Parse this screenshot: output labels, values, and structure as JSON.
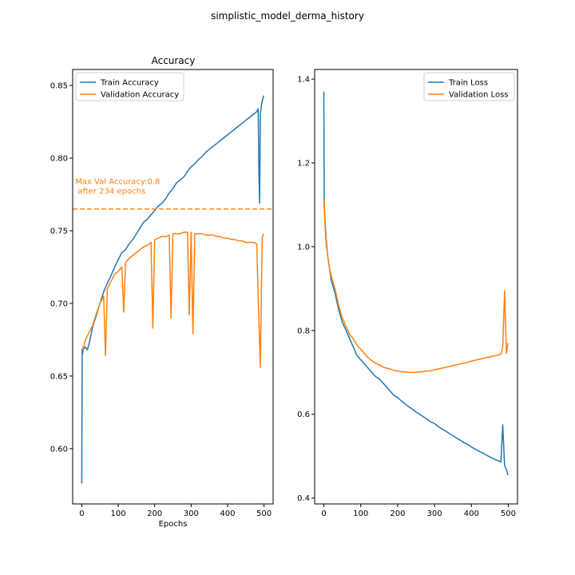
{
  "figure": {
    "suptitle": "simplistic_model_derma_history"
  },
  "colors": {
    "train": "#1f77b4",
    "validation": "#ff7f0e",
    "axes": "#000000",
    "background": "#ffffff"
  },
  "chart_data": [
    {
      "type": "line",
      "title": "Accuracy",
      "xlabel": "Epochs",
      "ylabel": "",
      "xlim": [
        -25,
        525
      ],
      "ylim": [
        0.562,
        0.861
      ],
      "xticks": [
        0,
        100,
        200,
        300,
        400,
        500
      ],
      "xtick_labels": [
        "0",
        "100",
        "200",
        "300",
        "400",
        "500"
      ],
      "yticks": [
        0.6,
        0.65,
        0.7,
        0.75,
        0.8,
        0.85
      ],
      "ytick_labels": [
        "0.60",
        "0.65",
        "0.70",
        "0.75",
        "0.80",
        "0.85"
      ],
      "grid": false,
      "legend": "upper-left",
      "series": [
        {
          "name": "Train Accuracy",
          "color_key": "train",
          "x": [
            0,
            1,
            2,
            4,
            6,
            10,
            15,
            20,
            25,
            30,
            40,
            50,
            60,
            70,
            80,
            90,
            100,
            110,
            120,
            130,
            140,
            150,
            160,
            170,
            180,
            190,
            200,
            210,
            220,
            230,
            240,
            250,
            260,
            270,
            280,
            290,
            300,
            310,
            320,
            330,
            340,
            350,
            360,
            370,
            380,
            390,
            400,
            410,
            420,
            430,
            440,
            450,
            460,
            470,
            480,
            484,
            486,
            488,
            490,
            494,
            499
          ],
          "y": [
            0.576,
            0.668,
            0.665,
            0.67,
            0.669,
            0.67,
            0.668,
            0.672,
            0.678,
            0.684,
            0.692,
            0.7,
            0.708,
            0.714,
            0.719,
            0.725,
            0.73,
            0.735,
            0.737,
            0.741,
            0.744,
            0.748,
            0.752,
            0.756,
            0.758,
            0.761,
            0.764,
            0.767,
            0.769,
            0.772,
            0.776,
            0.779,
            0.783,
            0.785,
            0.787,
            0.791,
            0.794,
            0.796,
            0.799,
            0.801,
            0.804,
            0.806,
            0.808,
            0.81,
            0.812,
            0.814,
            0.816,
            0.818,
            0.82,
            0.822,
            0.824,
            0.826,
            0.828,
            0.83,
            0.832,
            0.834,
            0.79,
            0.769,
            0.831,
            0.838,
            0.843
          ]
        },
        {
          "name": "Validation Accuracy",
          "color_key": "validation",
          "x": [
            0,
            5,
            10,
            20,
            30,
            40,
            50,
            60,
            65,
            70,
            80,
            90,
            100,
            110,
            115,
            120,
            130,
            140,
            150,
            160,
            170,
            180,
            190,
            195,
            200,
            210,
            220,
            230,
            240,
            245,
            250,
            260,
            270,
            280,
            290,
            295,
            300,
            305,
            310,
            320,
            330,
            340,
            350,
            360,
            370,
            380,
            390,
            400,
            410,
            420,
            430,
            440,
            450,
            460,
            470,
            480,
            485,
            490,
            495,
            499
          ],
          "y": [
            0.668,
            0.67,
            0.675,
            0.68,
            0.685,
            0.693,
            0.7,
            0.705,
            0.664,
            0.71,
            0.715,
            0.72,
            0.722,
            0.725,
            0.694,
            0.728,
            0.731,
            0.733,
            0.735,
            0.737,
            0.739,
            0.74,
            0.742,
            0.683,
            0.744,
            0.745,
            0.746,
            0.746,
            0.747,
            0.69,
            0.748,
            0.748,
            0.748,
            0.749,
            0.749,
            0.692,
            0.749,
            0.679,
            0.748,
            0.748,
            0.748,
            0.747,
            0.747,
            0.747,
            0.746,
            0.746,
            0.745,
            0.745,
            0.744,
            0.744,
            0.743,
            0.743,
            0.742,
            0.742,
            0.742,
            0.741,
            0.697,
            0.656,
            0.745,
            0.748
          ]
        }
      ],
      "annotation": {
        "text_line1": "Max Val Accuracy:0.8",
        "text_line2": " after 234 epochs",
        "hline_y": 0.765,
        "text_x": -18,
        "text_y": 0.782
      }
    },
    {
      "type": "line",
      "title": "",
      "xlabel": "",
      "ylabel": "",
      "xlim": [
        -25,
        525
      ],
      "ylim": [
        0.386,
        1.423
      ],
      "xticks": [
        0,
        100,
        200,
        300,
        400,
        500
      ],
      "xtick_labels": [
        "0",
        "100",
        "200",
        "300",
        "400",
        "500"
      ],
      "yticks": [
        0.4,
        0.6,
        0.8,
        1.0,
        1.2,
        1.4
      ],
      "ytick_labels": [
        "0.4",
        "0.6",
        "0.8",
        "1.0",
        "1.2",
        "1.4"
      ],
      "grid": false,
      "legend": "upper-right",
      "series": [
        {
          "name": "Train Loss",
          "color_key": "train",
          "x": [
            0,
            1,
            2,
            4,
            6,
            10,
            15,
            20,
            30,
            40,
            50,
            60,
            70,
            80,
            90,
            100,
            110,
            120,
            130,
            140,
            150,
            160,
            170,
            180,
            190,
            200,
            210,
            220,
            230,
            240,
            250,
            260,
            270,
            280,
            290,
            300,
            310,
            320,
            330,
            340,
            350,
            360,
            370,
            380,
            390,
            400,
            410,
            420,
            430,
            440,
            450,
            460,
            470,
            480,
            485,
            490,
            495,
            499
          ],
          "y": [
            1.37,
            1.1,
            1.08,
            1.05,
            1.02,
            0.98,
            0.95,
            0.92,
            0.89,
            0.85,
            0.82,
            0.8,
            0.78,
            0.76,
            0.74,
            0.73,
            0.72,
            0.71,
            0.7,
            0.69,
            0.685,
            0.675,
            0.665,
            0.655,
            0.645,
            0.64,
            0.632,
            0.625,
            0.618,
            0.612,
            0.605,
            0.6,
            0.594,
            0.588,
            0.582,
            0.578,
            0.571,
            0.565,
            0.56,
            0.554,
            0.549,
            0.543,
            0.538,
            0.532,
            0.528,
            0.522,
            0.517,
            0.512,
            0.508,
            0.503,
            0.498,
            0.494,
            0.49,
            0.486,
            0.575,
            0.478,
            0.468,
            0.455
          ]
        },
        {
          "name": "Validation Loss",
          "color_key": "validation",
          "x": [
            0,
            1,
            2,
            4,
            6,
            10,
            15,
            20,
            30,
            40,
            50,
            60,
            70,
            80,
            90,
            100,
            110,
            120,
            130,
            140,
            150,
            160,
            170,
            180,
            190,
            200,
            210,
            220,
            230,
            240,
            250,
            260,
            270,
            280,
            290,
            300,
            310,
            320,
            330,
            340,
            350,
            360,
            370,
            380,
            390,
            400,
            410,
            420,
            430,
            440,
            450,
            460,
            470,
            480,
            485,
            490,
            495,
            499
          ],
          "y": [
            1.09,
            1.11,
            1.07,
            1.04,
            1.01,
            0.98,
            0.95,
            0.93,
            0.9,
            0.86,
            0.83,
            0.81,
            0.79,
            0.78,
            0.765,
            0.755,
            0.745,
            0.735,
            0.728,
            0.722,
            0.718,
            0.713,
            0.71,
            0.708,
            0.705,
            0.703,
            0.702,
            0.701,
            0.7,
            0.7,
            0.7,
            0.701,
            0.702,
            0.703,
            0.704,
            0.706,
            0.708,
            0.71,
            0.712,
            0.714,
            0.716,
            0.718,
            0.72,
            0.722,
            0.724,
            0.727,
            0.729,
            0.731,
            0.733,
            0.735,
            0.737,
            0.739,
            0.741,
            0.743,
            0.76,
            0.895,
            0.745,
            0.77
          ]
        }
      ]
    }
  ]
}
